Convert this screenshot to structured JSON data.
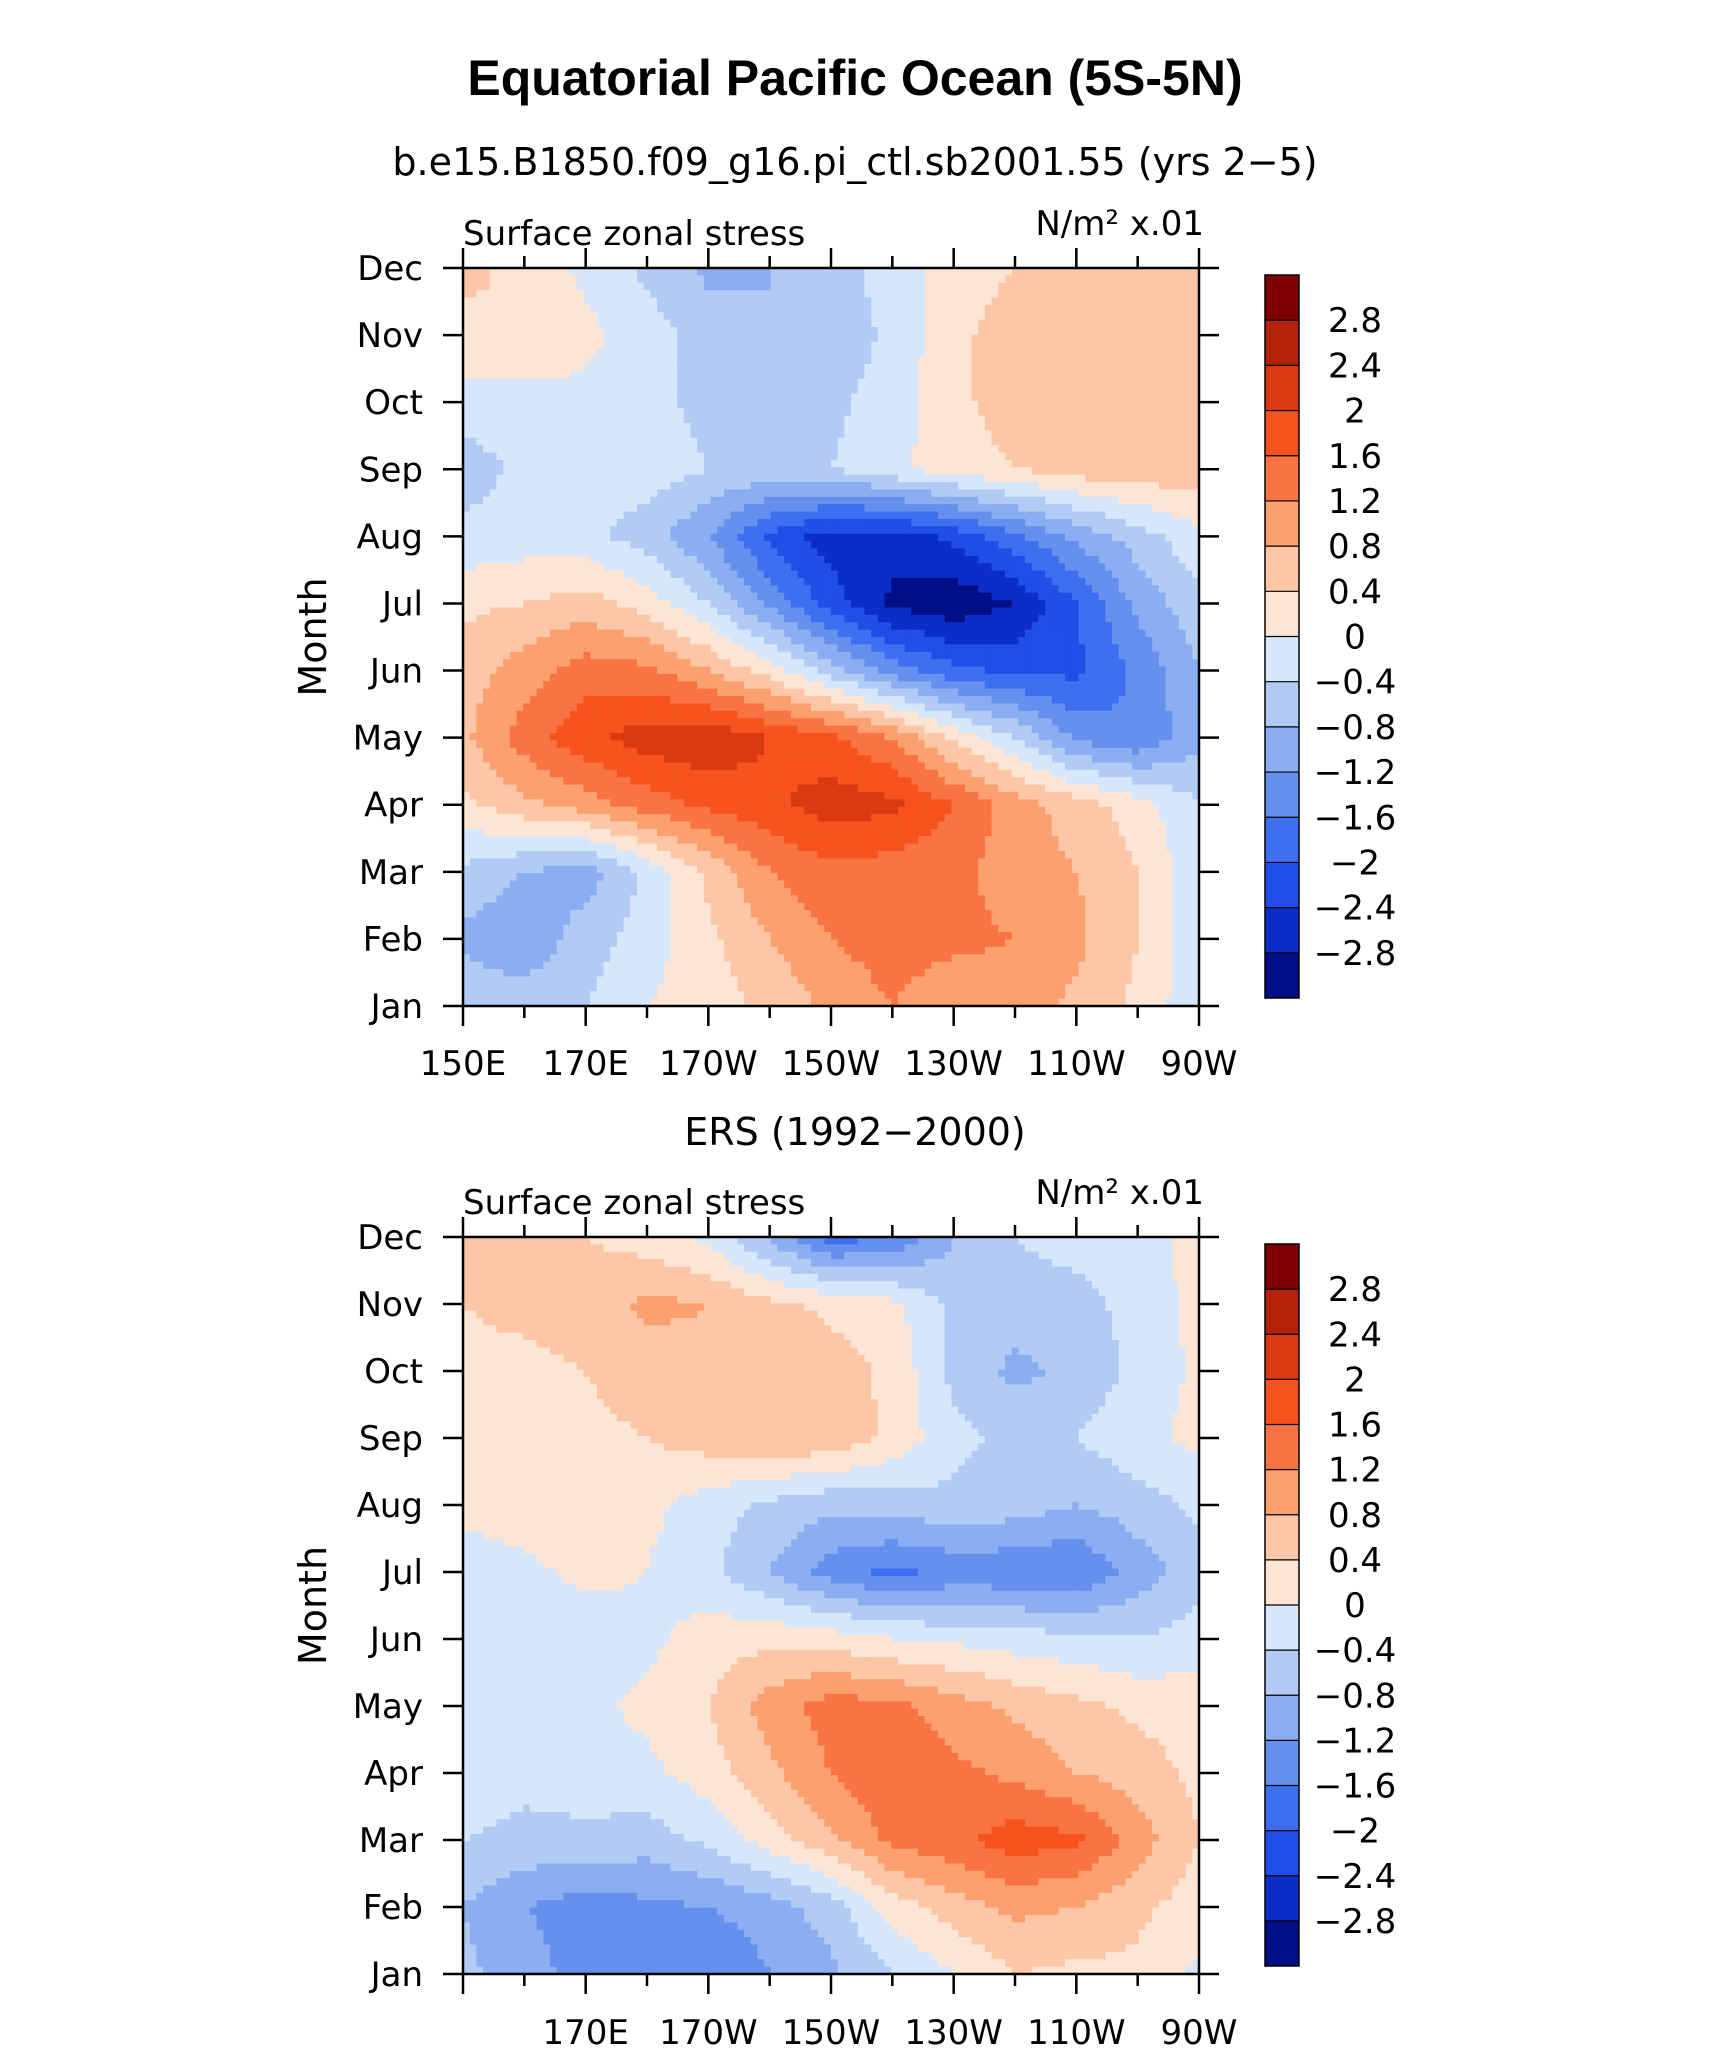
{
  "title": "Equatorial Pacific Ocean (5S-5N)",
  "colormap": {
    "levels": [
      "2.8",
      "2.4",
      "2",
      "1.6",
      "1.2",
      "0.8",
      "0.4",
      "0",
      "−0.4",
      "−0.8",
      "−1.2",
      "−1.6",
      "−2",
      "−2.4",
      "−2.8"
    ],
    "colors": [
      "#7f0000",
      "#b42209",
      "#da3a12",
      "#f7531f",
      "#fa7443",
      "#fca070",
      "#fdc7a7",
      "#fde5d5",
      "#d6e6fb",
      "#b2cbf5",
      "#8aaef1",
      "#6590ee",
      "#3d6ff0",
      "#1f4fe6",
      "#0c2ec7",
      "#010f87"
    ]
  },
  "chart_data": [
    {
      "type": "heatmap",
      "subtitle": "b.e15.B1850.f09_g16.pi_ctl.sb2001.55 (yrs 2−5)",
      "left_label": "Surface zonal stress",
      "right_label": "N/m² x.01",
      "ylabel": "Month",
      "x_range": [
        150,
        270
      ],
      "x_ticks": [
        {
          "lon": 150,
          "label": "150E"
        },
        {
          "lon": 170,
          "label": "170E"
        },
        {
          "lon": 190,
          "label": "170W"
        },
        {
          "lon": 210,
          "label": "150W"
        },
        {
          "lon": 230,
          "label": "130W"
        },
        {
          "lon": 250,
          "label": "110W"
        },
        {
          "lon": 270,
          "label": "90W"
        }
      ],
      "months": [
        "Jan",
        "Feb",
        "Mar",
        "Apr",
        "May",
        "Jun",
        "Jul",
        "Aug",
        "Sep",
        "Oct",
        "Nov",
        "Dec"
      ],
      "grid_lon": [
        150,
        160,
        170,
        180,
        190,
        200,
        210,
        220,
        230,
        240,
        250,
        260,
        270
      ],
      "grid_values": [
        [
          -0.5,
          -0.6,
          -0.4,
          0.0,
          0.2,
          0.5,
          0.9,
          1.2,
          0.9,
          1.0,
          0.7,
          0.3,
          -0.3
        ],
        [
          -0.9,
          -1.1,
          -0.6,
          -0.2,
          0.3,
          0.8,
          1.2,
          1.4,
          1.3,
          1.2,
          0.9,
          0.4,
          -0.3
        ],
        [
          -0.5,
          -0.8,
          -1.0,
          -0.3,
          0.5,
          1.2,
          1.5,
          1.4,
          1.3,
          1.0,
          0.8,
          0.4,
          -0.3
        ],
        [
          0.3,
          0.7,
          1.0,
          1.4,
          1.7,
          1.9,
          2.2,
          2.1,
          1.6,
          1.0,
          0.6,
          0.2,
          -0.4
        ],
        [
          0.7,
          1.4,
          1.9,
          2.2,
          2.3,
          2.0,
          1.7,
          1.2,
          0.3,
          -0.4,
          -1.3,
          -1.6,
          -0.9
        ],
        [
          0.6,
          1.0,
          1.4,
          1.3,
          0.8,
          0.2,
          -0.6,
          -1.4,
          -1.9,
          -2.1,
          -2.1,
          -1.5,
          -0.8
        ],
        [
          0.3,
          0.4,
          0.6,
          0.2,
          -0.4,
          -1.3,
          -2.2,
          -2.9,
          -3.1,
          -2.8,
          -2.0,
          -1.1,
          -0.5
        ],
        [
          -0.3,
          -0.2,
          -0.3,
          -0.6,
          -1.2,
          -2.1,
          -2.6,
          -2.6,
          -2.3,
          -1.7,
          -1.1,
          -0.6,
          -0.1
        ],
        [
          -0.6,
          -0.3,
          -0.2,
          -0.2,
          -0.4,
          -0.5,
          -0.4,
          -0.1,
          0.2,
          0.4,
          0.6,
          0.7,
          0.6
        ],
        [
          -0.2,
          -0.2,
          -0.1,
          -0.3,
          -0.5,
          -0.6,
          -0.5,
          -0.2,
          0.3,
          0.6,
          0.7,
          0.6,
          0.6
        ],
        [
          0.3,
          0.4,
          0.1,
          -0.2,
          -0.6,
          -0.8,
          -0.7,
          -0.3,
          0.3,
          0.6,
          0.4,
          0.5,
          0.6
        ],
        [
          0.5,
          0.3,
          -0.1,
          -0.5,
          -0.9,
          -0.8,
          -0.6,
          -0.2,
          0.2,
          0.4,
          0.4,
          0.4,
          0.6
        ]
      ]
    },
    {
      "type": "heatmap",
      "subtitle": "ERS (1992−2000)",
      "left_label": "Surface zonal stress",
      "right_label": "N/m² x.01",
      "ylabel": "Month",
      "x_range": [
        150,
        270
      ],
      "x_ticks": [
        {
          "lon": 170,
          "label": "170E"
        },
        {
          "lon": 190,
          "label": "170W"
        },
        {
          "lon": 210,
          "label": "150W"
        },
        {
          "lon": 230,
          "label": "130W"
        },
        {
          "lon": 250,
          "label": "110W"
        },
        {
          "lon": 270,
          "label": "90W"
        }
      ],
      "months": [
        "Jan",
        "Feb",
        "Mar",
        "Apr",
        "May",
        "Jun",
        "Jul",
        "Aug",
        "Sep",
        "Oct",
        "Nov",
        "Dec"
      ],
      "grid_lon": [
        150,
        160,
        170,
        180,
        190,
        200,
        210,
        220,
        230,
        240,
        250,
        260,
        270
      ],
      "grid_values": [
        [
          -0.7,
          -1.0,
          -1.4,
          -1.5,
          -1.6,
          -1.2,
          -0.9,
          -0.4,
          0.0,
          0.4,
          0.3,
          0.3,
          -0.1
        ],
        [
          -0.8,
          -1.2,
          -1.4,
          -1.3,
          -1.2,
          -1.0,
          -0.6,
          0.2,
          0.6,
          0.9,
          0.8,
          0.5,
          0.2
        ],
        [
          -0.4,
          -0.5,
          -0.5,
          -0.6,
          -0.3,
          0.2,
          0.7,
          1.3,
          1.5,
          1.8,
          1.7,
          1.0,
          0.4
        ],
        [
          -0.2,
          -0.3,
          -0.2,
          -0.1,
          0.2,
          0.7,
          1.2,
          1.6,
          1.3,
          1.1,
          0.8,
          0.6,
          0.3
        ],
        [
          -0.1,
          -0.3,
          -0.1,
          0.1,
          0.4,
          1.0,
          1.4,
          1.3,
          1.0,
          0.7,
          0.5,
          0.3,
          0.2
        ],
        [
          -0.4,
          -0.3,
          -0.2,
          -0.1,
          0.2,
          0.3,
          0.2,
          0.0,
          -0.1,
          -0.2,
          -0.3,
          -0.4,
          -0.2
        ],
        [
          -0.2,
          -0.1,
          0.1,
          0.0,
          -0.3,
          -0.8,
          -1.4,
          -1.7,
          -1.5,
          -1.5,
          -1.6,
          -1.0,
          -0.6
        ],
        [
          0.1,
          0.2,
          0.3,
          0.1,
          -0.2,
          -0.5,
          -0.7,
          -0.6,
          -0.5,
          -0.6,
          -0.8,
          -0.6,
          -0.3
        ],
        [
          0.2,
          0.1,
          0.3,
          0.4,
          0.6,
          0.8,
          0.7,
          0.3,
          -0.3,
          -0.5,
          -0.4,
          -0.1,
          0.1
        ],
        [
          0.3,
          0.3,
          0.4,
          0.6,
          0.7,
          0.8,
          0.6,
          0.3,
          -0.5,
          -0.9,
          -0.7,
          -0.3,
          0.1
        ],
        [
          0.4,
          0.5,
          0.6,
          0.9,
          0.8,
          0.5,
          0.3,
          0.1,
          -0.5,
          -0.6,
          -0.6,
          -0.2,
          0.1
        ],
        [
          0.4,
          0.7,
          0.4,
          0.2,
          -0.1,
          -0.9,
          -1.8,
          -1.6,
          -0.8,
          -0.4,
          -0.2,
          -0.1,
          0.1
        ]
      ]
    }
  ]
}
